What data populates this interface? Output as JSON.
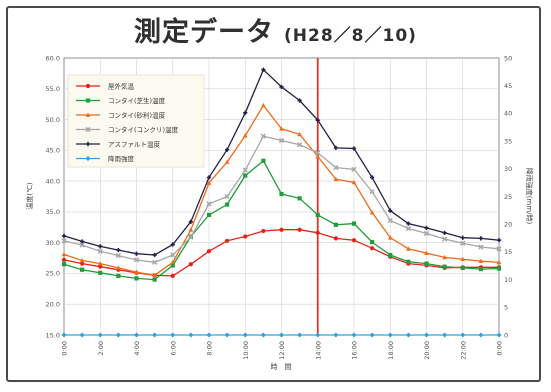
{
  "header": {
    "title": "測定データ",
    "subtitle": "(H28／8／10)"
  },
  "chart_data": {
    "type": "line",
    "title": "測定データ",
    "subtitle": "(H28／8／10)",
    "xlabel": "時　間",
    "ylabel": "温度(℃)",
    "y2label": "降雨強度(mm/時)",
    "x": [
      0,
      1,
      2,
      3,
      4,
      5,
      6,
      7,
      8,
      9,
      10,
      11,
      12,
      13,
      14,
      15,
      16,
      17,
      18,
      19,
      20,
      21,
      22,
      23,
      24
    ],
    "xticks": [
      "0:00",
      "2:00",
      "4:00",
      "6:00",
      "8:00",
      "10:00",
      "12:00",
      "14:00",
      "16:00",
      "18:00",
      "20:00",
      "22:00",
      "0:00"
    ],
    "ylim": [
      15,
      60
    ],
    "yticks": [
      "15.0",
      "20.0",
      "25.0",
      "30.0",
      "35.0",
      "40.0",
      "45.0",
      "50.0",
      "55.0",
      "60.0"
    ],
    "y2lim": [
      0,
      50
    ],
    "y2ticks": [
      "0",
      "5",
      "10",
      "15",
      "20",
      "25",
      "30",
      "35",
      "40",
      "45",
      "50"
    ],
    "marker_x": 14,
    "grid": true,
    "legend_position": "top-left",
    "series": [
      {
        "name": "屋外気温",
        "color": "#e2231a",
        "marker": "circle",
        "axis": "left",
        "values": [
          27.2,
          26.6,
          26.1,
          25.6,
          25.1,
          24.7,
          24.6,
          26.5,
          28.6,
          30.3,
          31.0,
          31.9,
          32.1,
          32.1,
          31.6,
          30.7,
          30.4,
          29.1,
          27.7,
          26.6,
          26.3,
          25.9,
          26.0,
          26.0,
          26.0
        ]
      },
      {
        "name": "コンタイ(芝生)温度",
        "color": "#1f9e3a",
        "marker": "square",
        "axis": "left",
        "values": [
          26.5,
          25.6,
          25.1,
          24.6,
          24.2,
          24.0,
          26.3,
          31.0,
          34.5,
          36.2,
          40.9,
          43.3,
          37.9,
          37.2,
          34.5,
          32.9,
          33.1,
          30.1,
          28.0,
          26.9,
          26.6,
          26.1,
          25.9,
          25.7,
          25.8
        ]
      },
      {
        "name": "コンタイ(砂利)温度",
        "color": "#f06a1a",
        "marker": "triangle",
        "axis": "left",
        "values": [
          28.1,
          27.1,
          26.6,
          25.9,
          25.2,
          24.7,
          26.8,
          32.1,
          39.7,
          43.1,
          47.4,
          52.3,
          48.5,
          47.6,
          44.0,
          40.3,
          39.8,
          34.9,
          30.8,
          29.0,
          28.3,
          27.6,
          27.3,
          27.0,
          26.8
        ]
      },
      {
        "name": "コンタイ(コンクリ)温度",
        "color": "#a7a7a7",
        "marker": "x",
        "axis": "left",
        "values": [
          30.3,
          29.6,
          28.6,
          27.9,
          27.2,
          26.8,
          28.0,
          30.9,
          36.3,
          37.5,
          41.8,
          47.3,
          46.6,
          45.9,
          44.6,
          42.2,
          41.9,
          38.3,
          33.6,
          32.3,
          31.5,
          30.6,
          29.9,
          29.3,
          29.0
        ]
      },
      {
        "name": "アスファルト温度",
        "color": "#222046",
        "marker": "cross",
        "axis": "left",
        "values": [
          31.1,
          30.2,
          29.4,
          28.8,
          28.2,
          28.0,
          29.7,
          33.4,
          40.6,
          45.1,
          51.1,
          58.1,
          55.3,
          53.1,
          49.9,
          45.4,
          45.3,
          40.6,
          35.2,
          33.1,
          32.4,
          31.6,
          30.8,
          30.7,
          30.4
        ]
      },
      {
        "name": "降雨強度",
        "color": "#2ca3e0",
        "marker": "diamond",
        "axis": "right",
        "values": [
          0,
          0,
          0,
          0,
          0,
          0,
          0,
          0,
          0,
          0,
          0,
          0,
          0,
          0,
          0,
          0,
          0,
          0,
          0,
          0,
          0,
          0,
          0,
          0,
          0
        ]
      }
    ]
  }
}
